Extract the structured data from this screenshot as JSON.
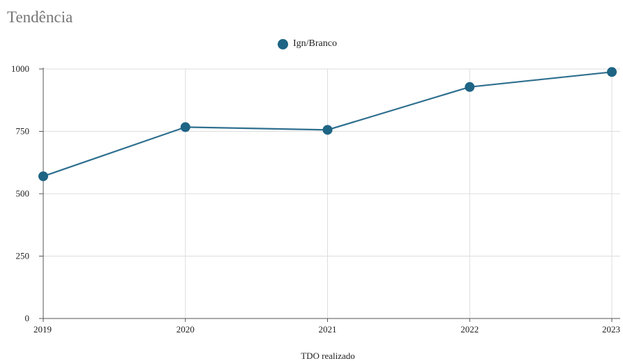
{
  "title": "Tendência",
  "colors": {
    "series": "#1e6484",
    "line": "#2f6f8f",
    "grid": "#dddddd",
    "axis": "#555555"
  },
  "chart_data": {
    "type": "line",
    "title": "Tendência",
    "xlabel": "TDO realizado",
    "ylabel": "",
    "x": [
      "2019",
      "2020",
      "2021",
      "2022",
      "2023"
    ],
    "series": [
      {
        "name": "Ign/Branco",
        "values": [
          570,
          767,
          756,
          928,
          988
        ]
      }
    ],
    "ylim": [
      0,
      1000
    ],
    "yticks": [
      0,
      250,
      500,
      750,
      1000
    ],
    "grid": true,
    "legend_position": "top-center"
  }
}
